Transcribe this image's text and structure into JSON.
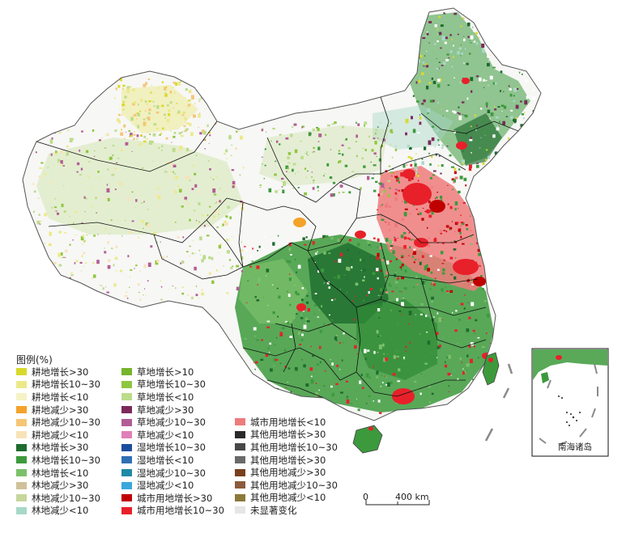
{
  "legend": {
    "title": "图例(%)",
    "columns": [
      [
        {
          "label": "耕地增长>30",
          "color": "#d9d92a"
        },
        {
          "label": "耕地增长10~30",
          "color": "#ece98a"
        },
        {
          "label": "耕地增长<10",
          "color": "#f5f3c6"
        },
        {
          "label": "耕地减少>30",
          "color": "#f4a22a"
        },
        {
          "label": "耕地减少10~30",
          "color": "#f6c675"
        },
        {
          "label": "耕地减少<10",
          "color": "#f8e3b8"
        },
        {
          "label": "林地增长>30",
          "color": "#1e6b2e"
        },
        {
          "label": "林地增长10~30",
          "color": "#3c9a3c"
        },
        {
          "label": "林地增长<10",
          "color": "#7cc06a"
        },
        {
          "label": "林地减少>30",
          "color": "#cfc29b"
        },
        {
          "label": "林地减少10~30",
          "color": "#c6d79c"
        },
        {
          "label": "林地减少<10",
          "color": "#a8d8c8"
        }
      ],
      [
        {
          "label": "草地增长>10",
          "color": "#76b52c"
        },
        {
          "label": "草地增长10~30",
          "color": "#8fc640"
        },
        {
          "label": "草地增长<10",
          "color": "#bcdc8c"
        },
        {
          "label": "草地减少>30",
          "color": "#7b2a5a"
        },
        {
          "label": "草地减少10~30",
          "color": "#b25c96"
        },
        {
          "label": "草地减少<10",
          "color": "#e07fb8"
        },
        {
          "label": "湿地增长10~30",
          "color": "#1c4e9e"
        },
        {
          "label": "湿地增长<10",
          "color": "#2f6fb5"
        },
        {
          "label": "湿地减少10~30",
          "color": "#1e8aa6"
        },
        {
          "label": "湿地减少<10",
          "color": "#3aa7dc"
        },
        {
          "label": "城市用地增长>30",
          "color": "#c00000"
        },
        {
          "label": "城市用地增长10~30",
          "color": "#e8202a"
        }
      ],
      [
        {
          "label": "城市用地增长<10",
          "color": "#ef7b7b"
        },
        {
          "label": "其他用地增长>30",
          "color": "#2a2a2a"
        },
        {
          "label": "其他用地增长10~30",
          "color": "#474747"
        },
        {
          "label": "其他用地增长>30",
          "color": "#6a6a6a"
        },
        {
          "label": "其他用地减少>30",
          "color": "#7a3f1e"
        },
        {
          "label": "其他用地减少10~30",
          "color": "#8c5a3c"
        },
        {
          "label": "其他用地减少<10",
          "color": "#8a7a3a"
        },
        {
          "label": "未显著变化",
          "color": "#e6e6e6"
        }
      ]
    ]
  },
  "scale_bar": {
    "start": "0",
    "end": "400 km"
  },
  "inset": {
    "label": "南海诸岛"
  }
}
